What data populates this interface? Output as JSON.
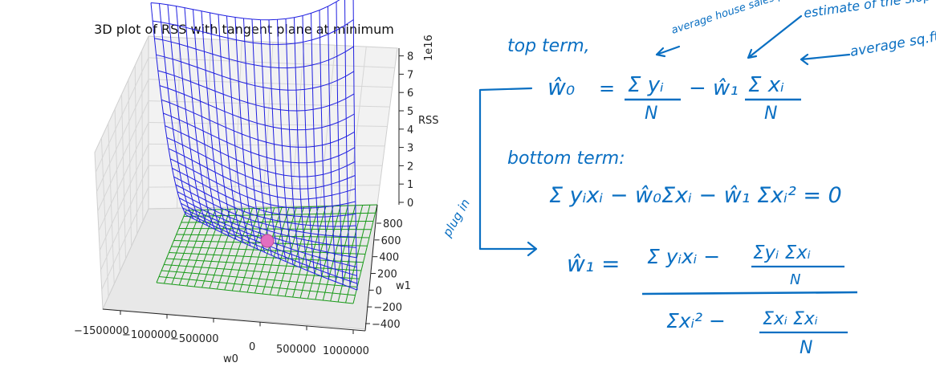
{
  "plot": {
    "title": "3D plot of RSS with tangent plane at minimum",
    "x_axis": {
      "label": "w0",
      "ticks": [
        "−1500000",
        "−1000000",
        "−500000",
        "0",
        "500000",
        "1000000"
      ]
    },
    "y_axis": {
      "label": "w1",
      "ticks": [
        "−400",
        "−200",
        "0",
        "200",
        "400",
        "600",
        "800"
      ]
    },
    "z_axis": {
      "label": "RSS",
      "exponent": "1e16",
      "ticks": [
        "0",
        "1",
        "2",
        "3",
        "4",
        "5",
        "6",
        "7",
        "8"
      ]
    },
    "colors": {
      "surface": "#1f1fe0",
      "plane": "#1a9a1a",
      "minimum_marker": "#e36fc0",
      "ink": "#0a6fc2"
    }
  },
  "notes": {
    "top_term_label": "top term,",
    "annotation_avg_price": "average house sales price",
    "annotation_slope": "estimate of the slope",
    "annotation_avg_sqft": "average sq.ft.",
    "w0_hat": "ŵ₀",
    "equals": "=",
    "sum_y": "Σ yᵢ",
    "minus_w1": "− ŵ₁",
    "sum_x": "Σ xᵢ",
    "N": "N",
    "bottom_term_label": "bottom term:",
    "bottom_equation": "Σ yᵢxᵢ − ŵ₀Σxᵢ − ŵ₁ Σxᵢ² = 0",
    "plug_in_label": "plug in",
    "w1_hat": "ŵ₁ =",
    "num_left": "Σ yᵢxᵢ −",
    "num_right": "Σyᵢ Σxᵢ",
    "den_left": "Σxᵢ² −",
    "den_right": "Σxᵢ Σxᵢ"
  }
}
